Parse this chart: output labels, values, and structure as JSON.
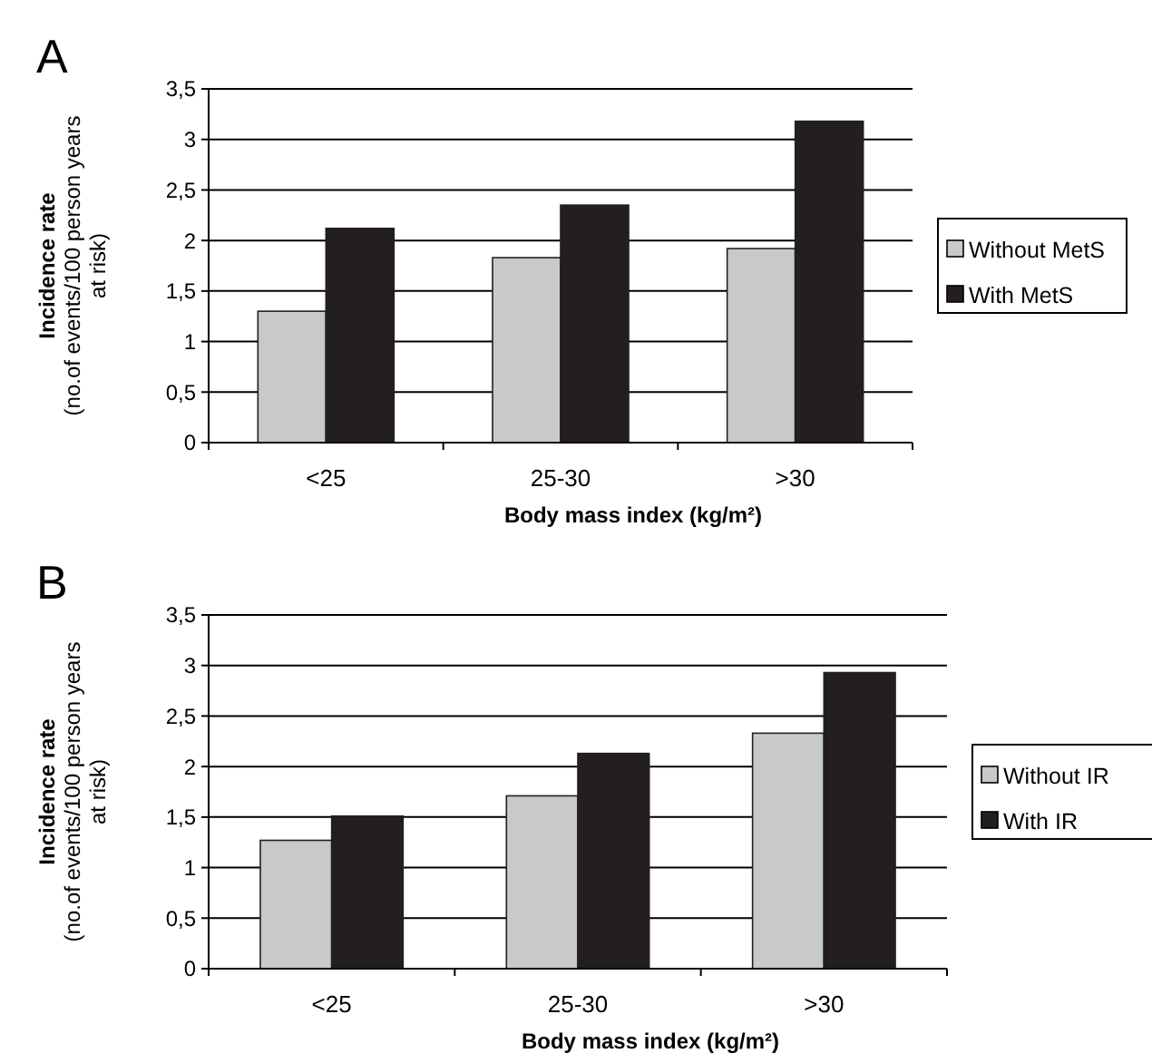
{
  "chart_data": [
    {
      "type": "bar",
      "title": "A",
      "xlabel": "Body mass index (kg/m²)",
      "ylabel": "Incidence rate\n(no.of events/100 person years\nat risk)",
      "categories": [
        "<25",
        "25-30",
        ">30"
      ],
      "series": [
        {
          "name": "Without MetS",
          "color": "#c8c9cb",
          "values": [
            1.3,
            1.83,
            1.92
          ]
        },
        {
          "name": "With MetS",
          "color": "#231f20",
          "values": [
            2.12,
            2.35,
            3.18
          ]
        }
      ],
      "ylim": [
        0,
        3.5
      ],
      "yticks": [
        0,
        {
          "value": 0.5,
          "label": "0,5"
        },
        1,
        {
          "value": 1.5,
          "label": "1,5"
        },
        2,
        {
          "value": 2.5,
          "label": "2,5"
        },
        3,
        {
          "value": 3.5,
          "label": "3,5"
        }
      ],
      "grid": "y",
      "legend": "right"
    },
    {
      "type": "bar",
      "title": "B",
      "xlabel": "Body mass index (kg/m²)",
      "ylabel": "Incidence rate\n(no.of events/100 person years\nat risk)",
      "categories": [
        "<25",
        "25-30",
        ">30"
      ],
      "series": [
        {
          "name": "Without IR",
          "color": "#c8c9cb",
          "values": [
            1.27,
            1.71,
            2.33
          ]
        },
        {
          "name": "With IR",
          "color": "#231f20",
          "values": [
            1.51,
            2.13,
            2.93
          ]
        }
      ],
      "ylim": [
        0,
        3.5
      ],
      "yticks": [
        0,
        {
          "value": 0.5,
          "label": "0,5"
        },
        1,
        {
          "value": 1.5,
          "label": "1,5"
        },
        2,
        {
          "value": 2.5,
          "label": "2,5"
        },
        3,
        {
          "value": 3.5,
          "label": "3,5"
        }
      ],
      "grid": "y",
      "legend": "right"
    }
  ]
}
